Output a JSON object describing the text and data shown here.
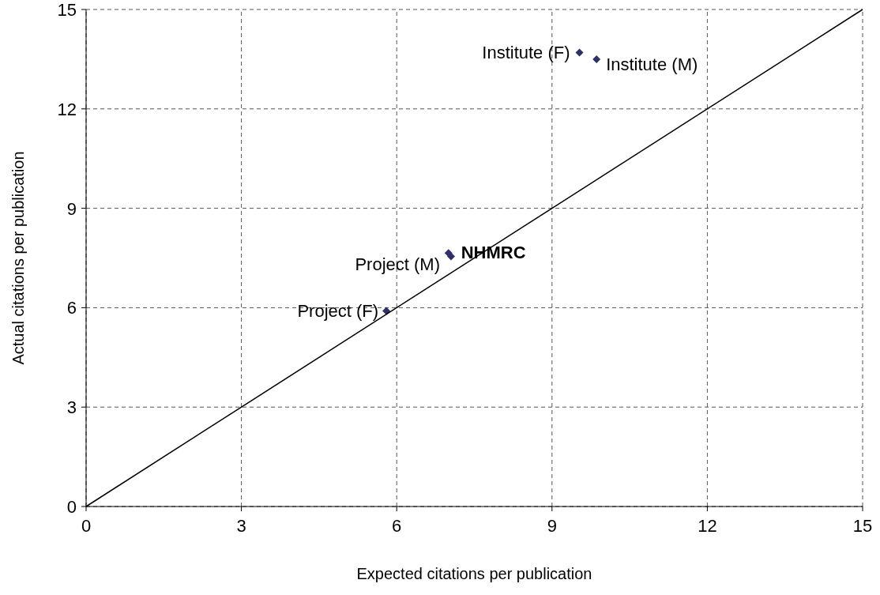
{
  "chart_data": {
    "type": "scatter",
    "xlabel": "Expected citations per publication",
    "ylabel": "Actual citations per publication",
    "xlim": [
      0,
      15
    ],
    "xticks": [
      0,
      3,
      6,
      9,
      12,
      15
    ],
    "ylim": [
      0,
      15
    ],
    "yticks": [
      0,
      3,
      6,
      9,
      12,
      15
    ],
    "grid": true,
    "marker": "diamond",
    "series": [
      {
        "color": "#2e3168",
        "x": [
          5.8,
          7.05,
          7.0,
          9.53,
          9.86
        ],
        "values": [
          5.9,
          7.55,
          7.65,
          13.7,
          13.5
        ]
      },
      {
        "type": "line",
        "color": "#000000",
        "marker": "none",
        "x": [
          0,
          15
        ],
        "values": [
          0,
          15
        ]
      }
    ],
    "annotations": [
      {
        "text": "Project (F)",
        "x": 5.8,
        "y": 5.9
      },
      {
        "text": "Project (M)",
        "x": 7.05,
        "y": 7.55
      },
      {
        "text": "NHMRC",
        "x": 7.0,
        "y": 7.65
      },
      {
        "text": "Institute (F)",
        "x": 9.53,
        "y": 13.7
      },
      {
        "text": "Institute (M)",
        "x": 9.86,
        "y": 13.5
      }
    ]
  }
}
